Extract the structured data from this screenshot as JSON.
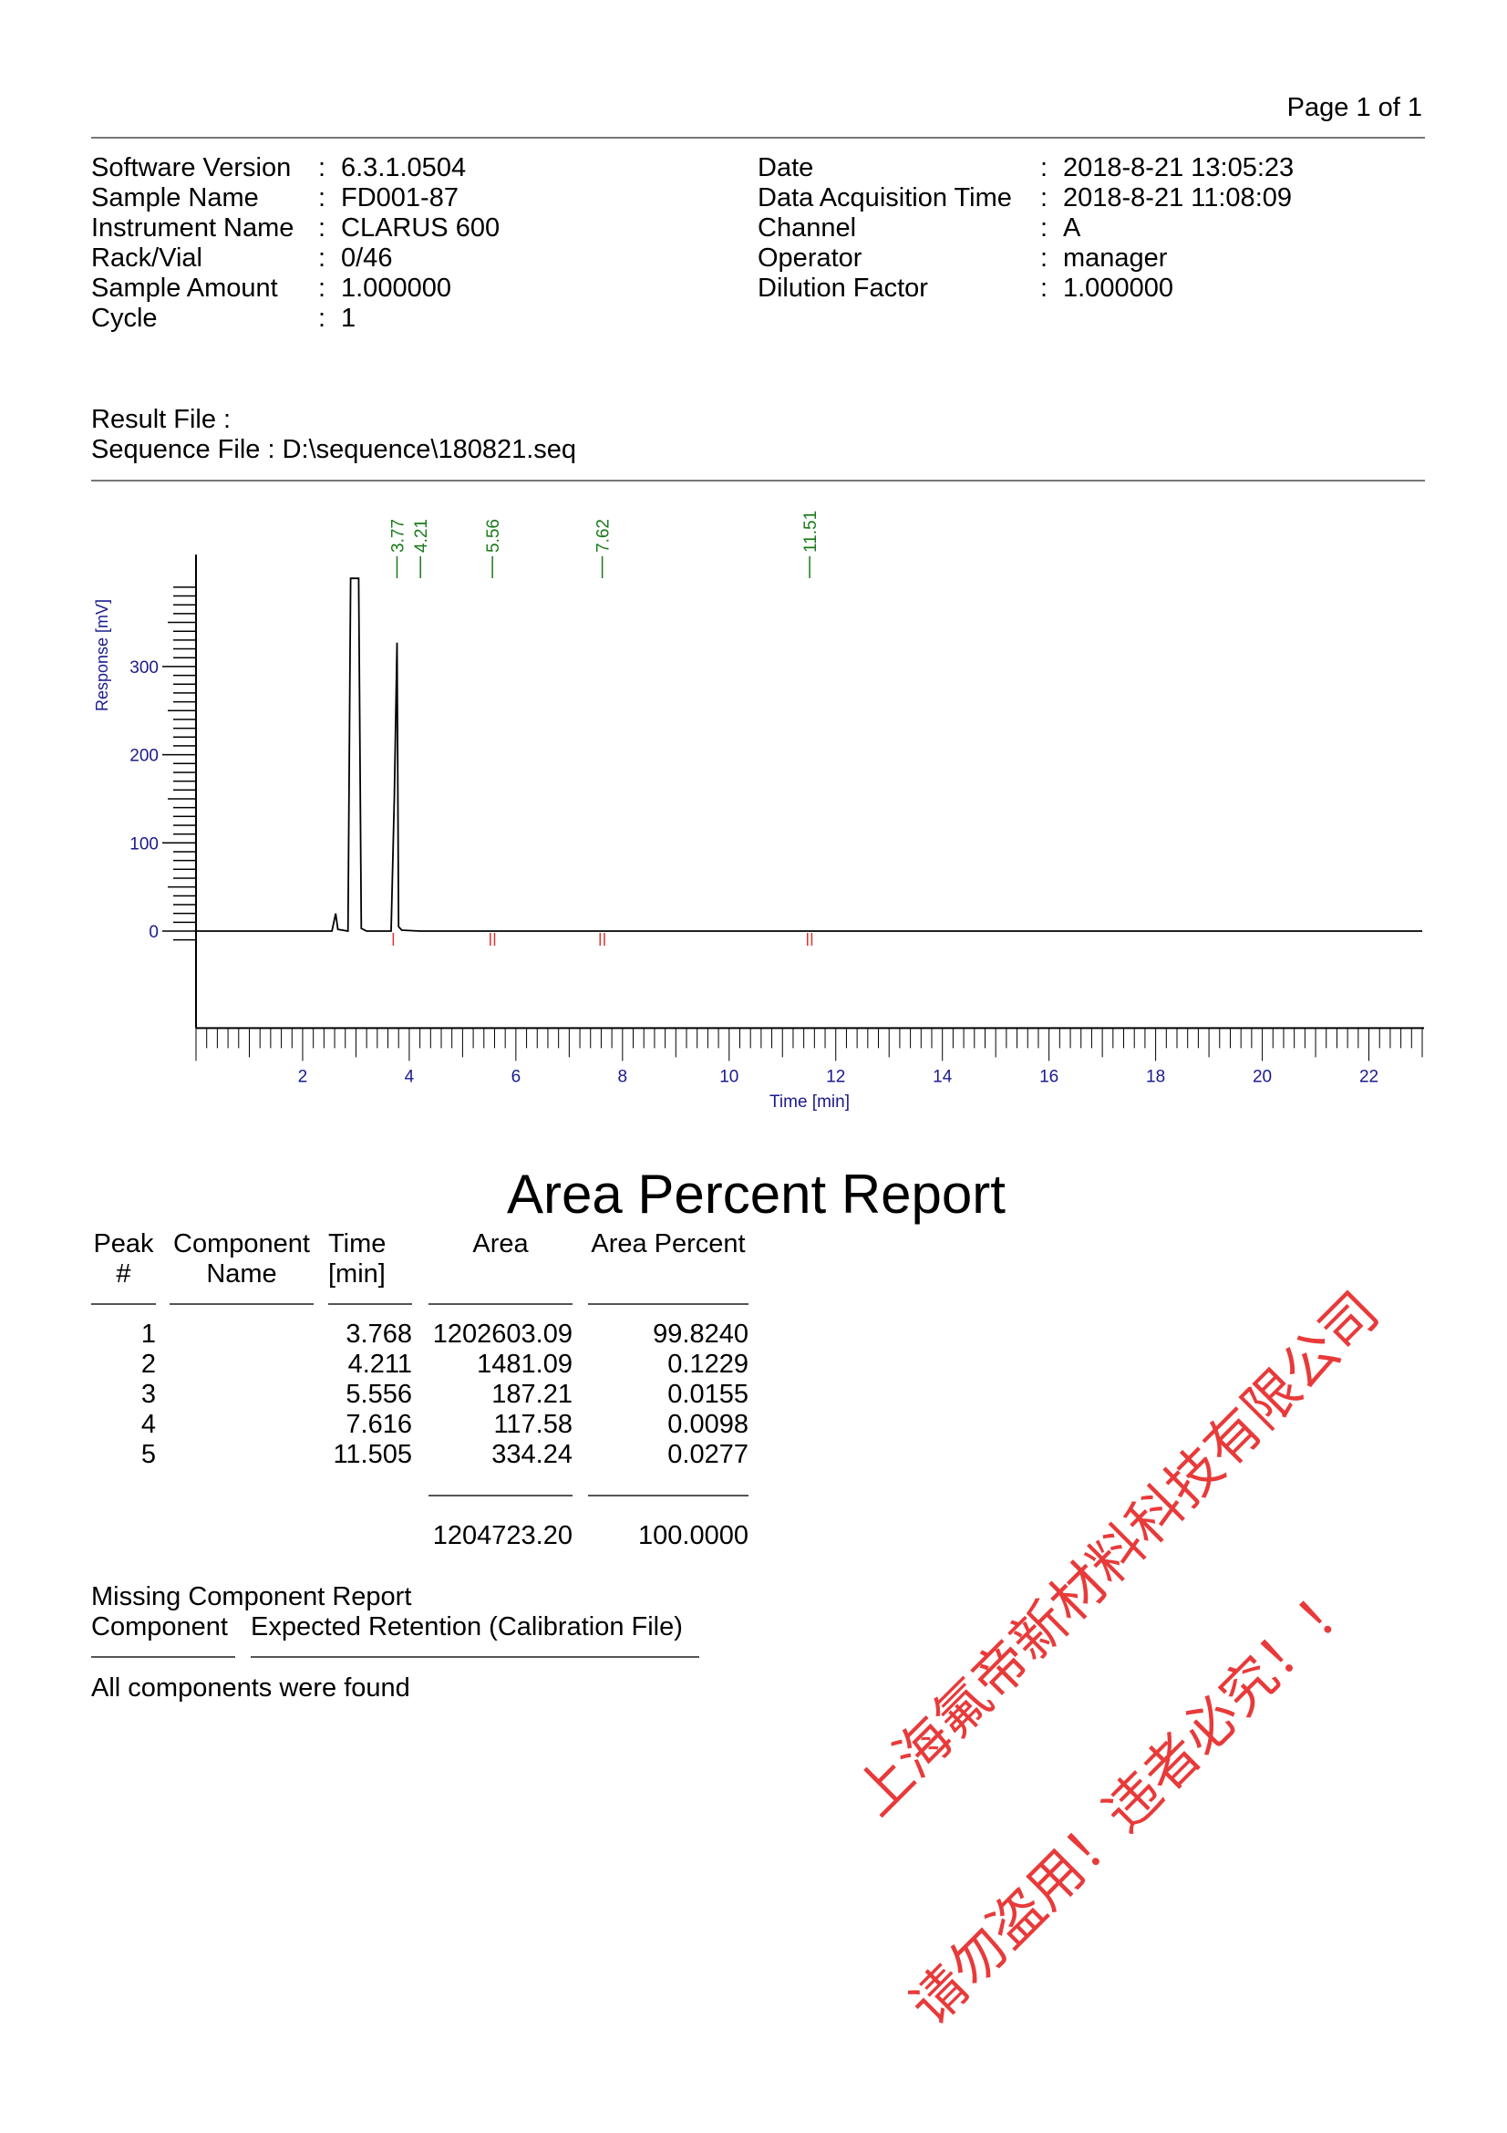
{
  "page_label": "Page 1 of 1",
  "header_left": [
    {
      "label": "Software Version",
      "value": "6.3.1.0504"
    },
    {
      "label": "Sample Name",
      "value": "FD001-87"
    },
    {
      "label": "Instrument Name",
      "value": "CLARUS 600"
    },
    {
      "label": "Rack/Vial",
      "value": "0/46"
    },
    {
      "label": "Sample Amount",
      "value": "1.000000"
    },
    {
      "label": "Cycle",
      "value": "1"
    }
  ],
  "header_right": [
    {
      "label": "Date",
      "value": "2018-8-21 13:05:23"
    },
    {
      "label": "Data Acquisition Time",
      "value": "2018-8-21 11:08:09"
    },
    {
      "label": "Channel",
      "value": "A"
    },
    {
      "label": "Operator",
      "value": "manager"
    },
    {
      "label": "Dilution Factor",
      "value": "1.000000"
    }
  ],
  "separator": ":",
  "result_file": "Result File :",
  "sequence_file": "Sequence File : D:\\sequence\\180821.seq",
  "chart_data": {
    "type": "line",
    "xlabel": "Time [min]",
    "ylabel": "Response [mV]",
    "xlim": [
      0,
      23
    ],
    "ylim": [
      -110,
      427
    ],
    "x_ticks": [
      "2",
      "4",
      "6",
      "8",
      "10",
      "12",
      "14",
      "16",
      "18",
      "20",
      "22"
    ],
    "y_ticks": [
      "0",
      "100",
      "200",
      "300"
    ],
    "grid": false,
    "trace": {
      "x": [
        0,
        2.55,
        2.62,
        2.66,
        2.85,
        2.9,
        3.05,
        3.1,
        3.2,
        3.66,
        3.72,
        3.77,
        3.8,
        3.86,
        4.2,
        23
      ],
      "y": [
        0,
        0,
        20,
        2,
        0,
        400,
        400,
        3,
        0,
        0,
        150,
        327,
        5,
        1,
        0,
        0
      ]
    },
    "peak_labels": [
      "3.77",
      "4.21",
      "5.56",
      "7.62",
      "11.51"
    ],
    "peak_times": [
      3.77,
      4.21,
      5.56,
      7.62,
      11.51
    ],
    "baseline_marks": [
      3.7,
      5.52,
      5.6,
      7.58,
      7.66,
      11.47,
      11.55
    ],
    "colors": {
      "trace": "#000000",
      "axis_text": "#1a1a8c",
      "peak_label": "#1a7a1a",
      "baseline_mark": "#e03030"
    }
  },
  "report": {
    "title": "Area Percent Report",
    "columns": [
      [
        "Peak",
        "#"
      ],
      [
        "Component",
        "Name"
      ],
      [
        "Time",
        "[min]"
      ],
      [
        "Area",
        ""
      ],
      [
        "Area Percent",
        ""
      ]
    ],
    "rows": [
      {
        "peak": "1",
        "name": "",
        "time": "3.768",
        "area": "1202603.09",
        "percent": "99.8240"
      },
      {
        "peak": "2",
        "name": "",
        "time": "4.211",
        "area": "1481.09",
        "percent": "0.1229"
      },
      {
        "peak": "3",
        "name": "",
        "time": "5.556",
        "area": "187.21",
        "percent": "0.0155"
      },
      {
        "peak": "4",
        "name": "",
        "time": "7.616",
        "area": "117.58",
        "percent": "0.0098"
      },
      {
        "peak": "5",
        "name": "",
        "time": "11.505",
        "area": "334.24",
        "percent": "0.0277"
      }
    ],
    "total_area": "1204723.20",
    "total_percent": "100.0000"
  },
  "missing": {
    "title": "Missing Component Report",
    "col1": "Component",
    "col2": "Expected Retention (Calibration File)",
    "message": "All components were found"
  },
  "watermark": {
    "line1": "上海氟帝新材料科技有限公司",
    "line2": "请勿盗用！违者必究！！",
    "color": "#e83a3a"
  }
}
